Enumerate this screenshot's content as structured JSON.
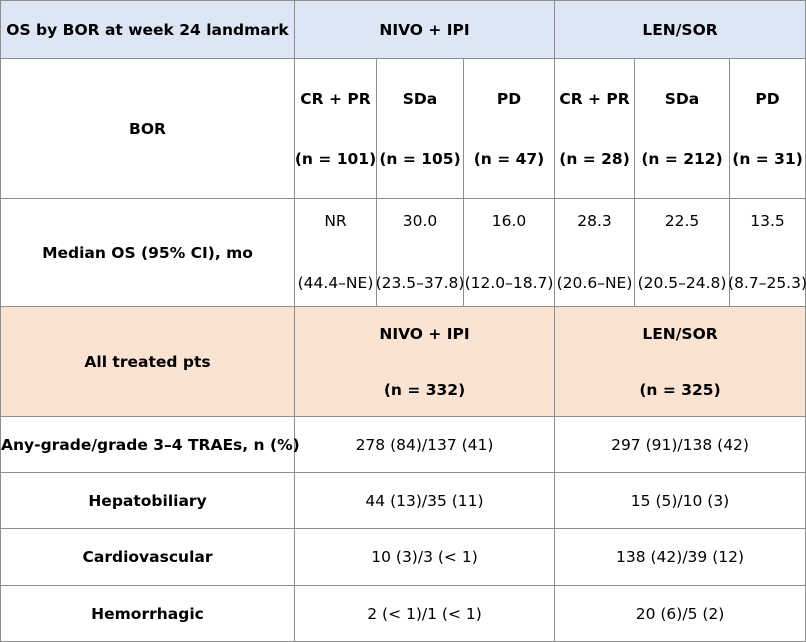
{
  "header": {
    "title": "OS by BOR at week 24 landmark",
    "arm1": "NIVO + IPI",
    "arm2": "LEN/SOR"
  },
  "bor_row": {
    "label": "BOR",
    "cells": [
      {
        "cat": "CR + PR",
        "n": "(n = 101)"
      },
      {
        "cat": "SDa",
        "n": "(n = 105)"
      },
      {
        "cat": "PD",
        "n": "(n = 47)"
      },
      {
        "cat": "CR + PR",
        "n": "(n = 28)"
      },
      {
        "cat": "SDa",
        "n": "(n = 212)"
      },
      {
        "cat": "PD",
        "n": "(n = 31)"
      }
    ]
  },
  "median_row": {
    "label": "Median OS (95% CI), mo",
    "cells": [
      {
        "median": "NR",
        "ci": "(44.4–NE)"
      },
      {
        "median": "30.0",
        "ci": "(23.5–37.8)"
      },
      {
        "median": "16.0",
        "ci": "(12.0–18.7)"
      },
      {
        "median": "28.3",
        "ci": "(20.6–NE)"
      },
      {
        "median": "22.5",
        "ci": "(20.5–24.8)"
      },
      {
        "median": "13.5",
        "ci": "(8.7–25.3)"
      }
    ]
  },
  "treated": {
    "label": "All treated pts",
    "arm1": "NIVO + IPI",
    "arm1_n": "(n = 332)",
    "arm2": "LEN/SOR",
    "arm2_n": "(n = 325)"
  },
  "trae_rows": [
    {
      "label": "Any-grade/grade 3–4 TRAEs, n (%)",
      "arm1": "278 (84)/137 (41)",
      "arm2": "297 (91)/138 (42)"
    },
    {
      "label": "Hepatobiliary",
      "arm1": "44 (13)/35 (11)",
      "arm2": "15 (5)/10 (3)"
    },
    {
      "label": "Cardiovascular",
      "arm1": "10 (3)/3 (< 1)",
      "arm2": "138 (42)/39 (12)"
    },
    {
      "label": "Hemorrhagic",
      "arm1": "2 (< 1)/1 (< 1)",
      "arm2": "20 (6)/5 (2)"
    }
  ],
  "colors": {
    "header_bg": "#dde6f4",
    "section_bg": "#fbe3d4",
    "border": "#8e8e8e"
  }
}
